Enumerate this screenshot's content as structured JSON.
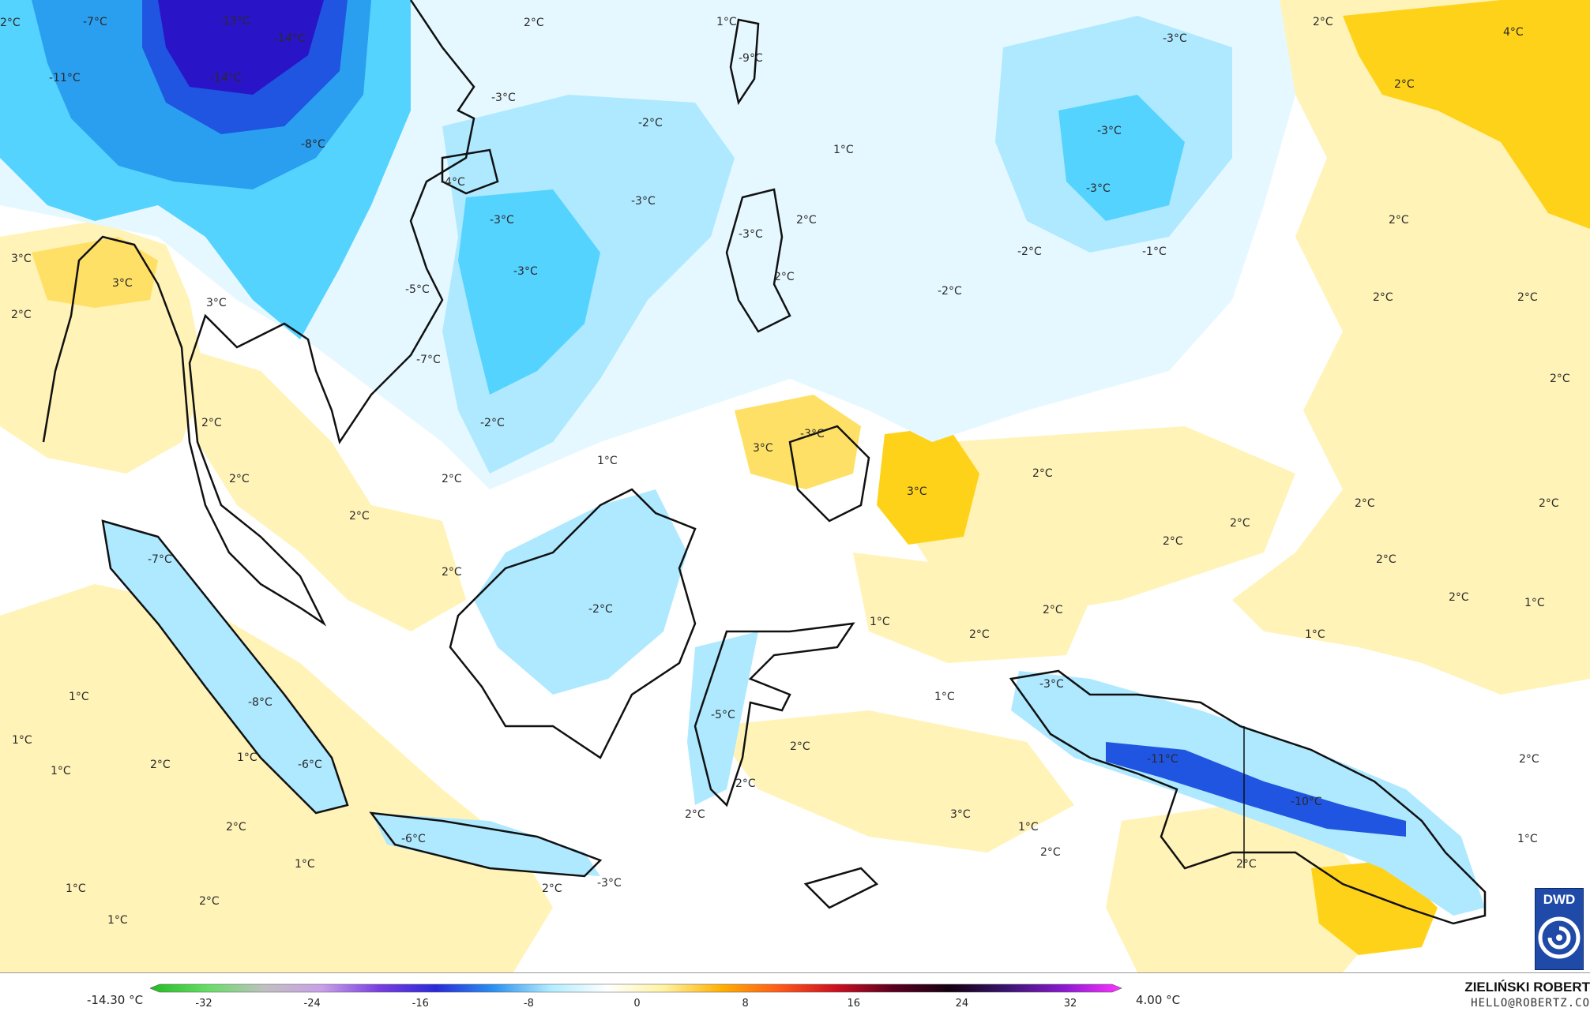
{
  "map": {
    "labels": [
      {
        "text": "-7°C"
      },
      {
        "text": "-13°C"
      },
      {
        "text": "-14°C"
      },
      {
        "text": "-11°C"
      },
      {
        "text": "-14°C"
      },
      {
        "text": "2°C"
      },
      {
        "text": "1°C"
      },
      {
        "text": "-9°C"
      },
      {
        "text": "2°C"
      },
      {
        "text": "-3°C"
      },
      {
        "text": "4°C"
      },
      {
        "text": "2°C"
      },
      {
        "text": "2°C"
      },
      {
        "text": "-8°C"
      },
      {
        "text": "-3°C"
      },
      {
        "text": "-2°C"
      },
      {
        "text": "-3°C"
      },
      {
        "text": "1°C"
      },
      {
        "text": "-4°C"
      },
      {
        "text": "-3°C"
      },
      {
        "text": "-3°C"
      },
      {
        "text": "-3°C"
      },
      {
        "text": "-3°C"
      },
      {
        "text": "2°C"
      },
      {
        "text": "2°C"
      },
      {
        "text": "-2°C"
      },
      {
        "text": "-1°C"
      },
      {
        "text": "-3°C"
      },
      {
        "text": "2°C"
      },
      {
        "text": "-2°C"
      },
      {
        "text": "3°C"
      },
      {
        "text": "3°C"
      },
      {
        "text": "2°C"
      },
      {
        "text": "3°C"
      },
      {
        "text": "-5°C"
      },
      {
        "text": "2°C"
      },
      {
        "text": "2°C"
      },
      {
        "text": "-7°C"
      },
      {
        "text": "2°C"
      },
      {
        "text": "2°C"
      },
      {
        "text": "-2°C"
      },
      {
        "text": "3°C"
      },
      {
        "text": "-3°C"
      },
      {
        "text": "1°C"
      },
      {
        "text": "2°C"
      },
      {
        "text": "3°C"
      },
      {
        "text": "2°C"
      },
      {
        "text": "2°C"
      },
      {
        "text": "2°C"
      },
      {
        "text": "2°C"
      },
      {
        "text": "2°C"
      },
      {
        "text": "-7°C"
      },
      {
        "text": "2°C"
      },
      {
        "text": "2°C"
      },
      {
        "text": "2°C"
      },
      {
        "text": "-2°C"
      },
      {
        "text": "2°C"
      },
      {
        "text": "1°C"
      },
      {
        "text": "2°C"
      },
      {
        "text": "2°C"
      },
      {
        "text": "1°C"
      },
      {
        "text": "1°C"
      },
      {
        "text": "1°C"
      },
      {
        "text": "1°C"
      },
      {
        "text": "-3°C"
      },
      {
        "text": "-8°C"
      },
      {
        "text": "2°C"
      },
      {
        "text": "1°C"
      },
      {
        "text": "-6°C"
      },
      {
        "text": "-5°C"
      },
      {
        "text": "2°C"
      },
      {
        "text": "-11°C"
      },
      {
        "text": "1°C"
      },
      {
        "text": "2°C"
      },
      {
        "text": "2°C"
      },
      {
        "text": "2°C"
      },
      {
        "text": "1°C"
      },
      {
        "text": "-6°C"
      },
      {
        "text": "2°C"
      },
      {
        "text": "3°C"
      },
      {
        "text": "2°C"
      },
      {
        "text": "1°C"
      },
      {
        "text": "-10°C"
      },
      {
        "text": "2°C"
      },
      {
        "text": "1°C"
      },
      {
        "text": "2°C"
      },
      {
        "text": "1°C"
      },
      {
        "text": "2°C"
      },
      {
        "text": "2°C"
      },
      {
        "text": "1°C"
      },
      {
        "text": "-3°C"
      },
      {
        "text": "1°C"
      }
    ]
  },
  "legend": {
    "min_label": "-14.30 °C",
    "max_label": "4.00 °C",
    "ticks": [
      "-32",
      "-24",
      "-16",
      "-8",
      "0",
      "8",
      "16",
      "24",
      "32"
    ],
    "colors": [
      "#22bb22",
      "#66dd66",
      "#c0c0c0",
      "#c9a0e8",
      "#7a3ee0",
      "#2a2ad8",
      "#2a90f0",
      "#b0ecff",
      "#ffffff",
      "#fff2a0",
      "#ffb000",
      "#ff5a1a",
      "#cc1020",
      "#5a0020",
      "#140010",
      "#3a1570",
      "#8a1ad0",
      "#ff33ff"
    ]
  },
  "credit": {
    "name": "ZIELIŃSKI ROBERT",
    "email": "HELLO@ROBERTZ.CO"
  },
  "logo": {
    "text": "DWD"
  },
  "colors": {
    "warm_1": "#fff3b8",
    "warm_2": "#ffe066",
    "warm_3": "#ffd21a",
    "cold_1": "#e6f8ff",
    "cold_2": "#aee9ff",
    "cold_3": "#55d3ff",
    "cold_4": "#2a9ff0",
    "cold_5": "#1f55e0",
    "cold_6": "#2a14c8"
  }
}
